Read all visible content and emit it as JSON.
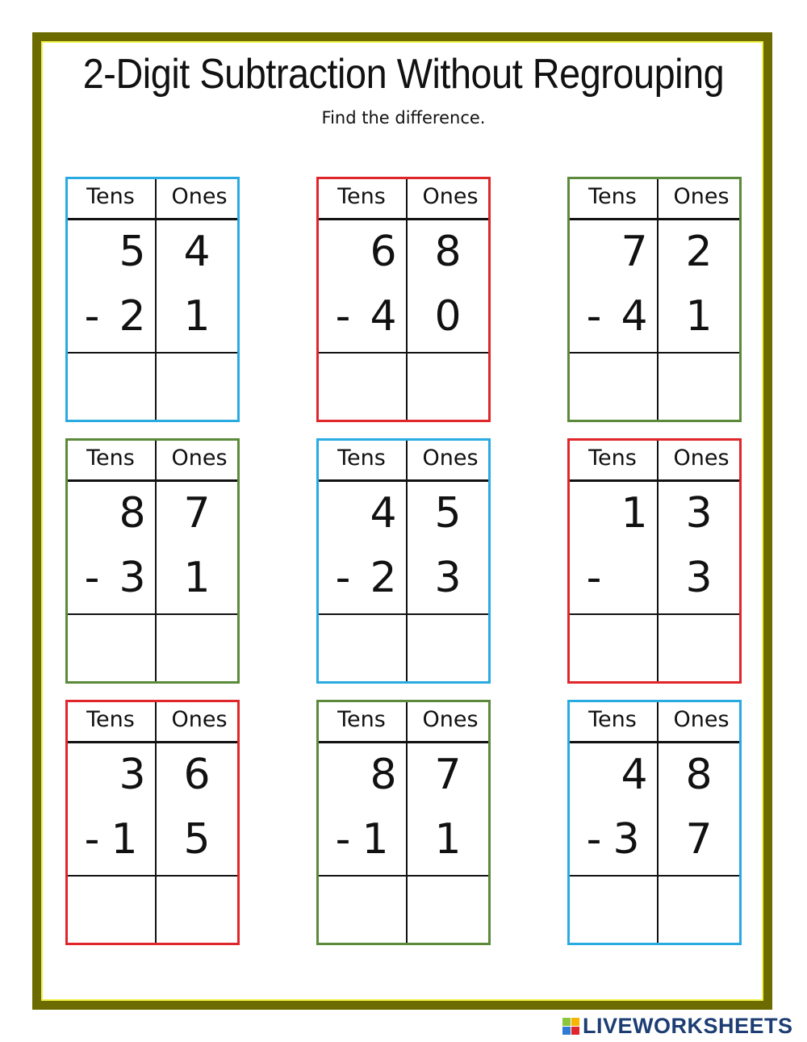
{
  "title": "2-Digit Subtraction Without Regrouping",
  "subtitle": "Find the difference.",
  "column_headers": {
    "tens": "Tens",
    "ones": "Ones"
  },
  "colors": {
    "border_outer": "#6b6b00",
    "border_inner": "#f2f24a",
    "blue": "#29abe2",
    "red": "#e0262a",
    "green": "#5a8a3a"
  },
  "problems": [
    {
      "color": "#29abe2",
      "top_tens": "5",
      "top_ones": "4",
      "minus": "-",
      "bottom_tens": "2",
      "bottom_ones": "1"
    },
    {
      "color": "#e0262a",
      "top_tens": "6",
      "top_ones": "8",
      "minus": "-",
      "bottom_tens": "4",
      "bottom_ones": "0"
    },
    {
      "color": "#5a8a3a",
      "top_tens": "7",
      "top_ones": "2",
      "minus": "-",
      "bottom_tens": "4",
      "bottom_ones": "1"
    },
    {
      "color": "#5a8a3a",
      "top_tens": "8",
      "top_ones": "7",
      "minus": "-",
      "bottom_tens": "3",
      "bottom_ones": "1"
    },
    {
      "color": "#29abe2",
      "top_tens": "4",
      "top_ones": "5",
      "minus": "-",
      "bottom_tens": "2",
      "bottom_ones": "3"
    },
    {
      "color": "#e0262a",
      "top_tens": "1",
      "top_ones": "3",
      "minus": "-",
      "bottom_tens": "",
      "bottom_ones": "3"
    },
    {
      "color": "#e0262a",
      "top_tens": "3",
      "top_ones": "6",
      "minus": "-",
      "bottom_tens": "1",
      "bottom_ones": "5"
    },
    {
      "color": "#5a8a3a",
      "top_tens": "8",
      "top_ones": "7",
      "minus": "-",
      "bottom_tens": "1",
      "bottom_ones": "1"
    },
    {
      "color": "#29abe2",
      "top_tens": "4",
      "top_ones": "8",
      "minus": "-",
      "bottom_tens": "3",
      "bottom_ones": "7"
    }
  ],
  "logo": {
    "text": "LIVEWORKSHEETS",
    "blocks": "LIVE"
  }
}
